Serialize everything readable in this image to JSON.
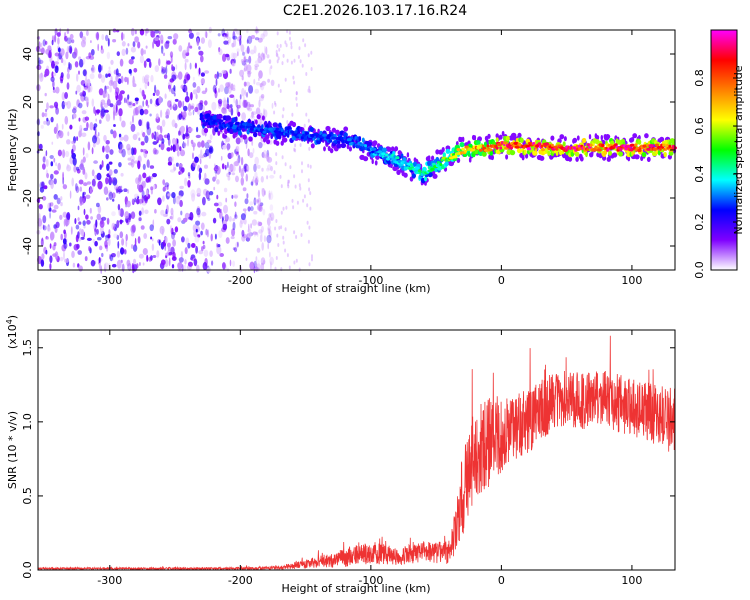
{
  "title": "C2E1.2026.103.17.16.R24",
  "chart_data": [
    {
      "type": "heatmap",
      "name": "spectrogram",
      "xlabel": "Height of straight line (km)",
      "ylabel": "Frequency (Hz)",
      "xlim": [
        -355,
        133
      ],
      "ylim": [
        -50,
        50
      ],
      "x_ticks": [
        -300,
        -200,
        -100,
        0,
        100
      ],
      "x_tick_labels": [
        "-300",
        "-200",
        "-100",
        "0",
        "100"
      ],
      "y_ticks": [
        -40,
        -20,
        0,
        20,
        40
      ],
      "y_tick_labels": [
        "-40",
        "-20",
        "0",
        "20",
        "40"
      ],
      "colorbar": {
        "label": "Normalized spectral amplitude",
        "range": [
          0,
          1
        ],
        "ticks": [
          0.0,
          0.2,
          0.4,
          0.6,
          0.8
        ],
        "tick_labels": [
          "0.0",
          "0.2",
          "0.4",
          "0.6",
          "0.8"
        ],
        "colors": [
          "#ffffff",
          "#7f00ff",
          "#0000ff",
          "#00ffff",
          "#00ff00",
          "#ffff00",
          "#ff8000",
          "#ff0000",
          "#ff00ff"
        ]
      },
      "ridge": {
        "x": [
          -230,
          -200,
          -150,
          -120,
          -100,
          -80,
          -60,
          -50,
          -40,
          -30,
          -10,
          0,
          50,
          100,
          133
        ],
        "frequency": [
          12,
          10,
          6,
          4,
          0,
          -4,
          -10,
          -6,
          -3,
          0,
          1,
          2,
          1,
          1,
          1
        ],
        "amplitude": [
          0.25,
          0.3,
          0.3,
          0.3,
          0.35,
          0.4,
          0.45,
          0.5,
          0.6,
          0.7,
          0.85,
          0.95,
          0.95,
          0.95,
          0.9
        ]
      },
      "noise_region_x": [
        -355,
        -175
      ]
    },
    {
      "type": "line",
      "name": "snr",
      "xlabel": "Height of straight line (km)",
      "ylabel": "SNR (10 * v/v)",
      "y_multiplier_label": "(x10",
      "y_multiplier_exponent": "4",
      "y_multiplier_suffix": ")",
      "xlim": [
        -355,
        133
      ],
      "ylim": [
        0,
        1.62
      ],
      "x_ticks": [
        -300,
        -200,
        -100,
        0,
        100
      ],
      "x_tick_labels": [
        "-300",
        "-200",
        "-100",
        "0",
        "100"
      ],
      "y_ticks": [
        0.0,
        0.5,
        1.0,
        1.5
      ],
      "y_tick_labels": [
        "0.0",
        "0.5",
        "1.0",
        "1.5"
      ],
      "series_color": "#ee3333",
      "envelope": {
        "x": [
          -355,
          -200,
          -170,
          -150,
          -120,
          -100,
          -80,
          -60,
          -40,
          -35,
          -30,
          -20,
          -10,
          0,
          20,
          40,
          60,
          80,
          100,
          120,
          133
        ],
        "mean": [
          0.01,
          0.01,
          0.015,
          0.04,
          0.08,
          0.12,
          0.09,
          0.12,
          0.12,
          0.25,
          0.5,
          0.8,
          0.85,
          0.9,
          1.0,
          1.15,
          1.15,
          1.15,
          1.1,
          1.05,
          1.0
        ],
        "spread": [
          0.006,
          0.008,
          0.012,
          0.03,
          0.06,
          0.08,
          0.06,
          0.07,
          0.08,
          0.15,
          0.3,
          0.3,
          0.3,
          0.25,
          0.22,
          0.2,
          0.2,
          0.2,
          0.2,
          0.22,
          0.25
        ]
      }
    }
  ]
}
